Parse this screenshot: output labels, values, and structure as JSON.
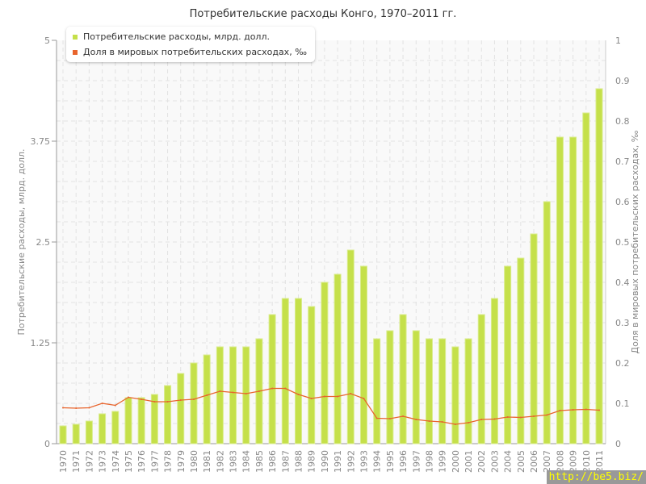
{
  "chart_data": {
    "type": "bar+line",
    "title": "Потребительские расходы Конго, 1970–2011 гг.",
    "ylabel": "Потребительские расходы, млрд. долл.",
    "y2label": "Доля в мировых потребительских расходах, ‰",
    "ylim": [
      0,
      5
    ],
    "y2lim": [
      0,
      1
    ],
    "yticks": [
      "0",
      "1.25",
      "2.5",
      "3.75",
      "5"
    ],
    "y2ticks": [
      "0",
      "0.1",
      "0.2",
      "0.3",
      "0.4",
      "0.5",
      "0.6",
      "0.7",
      "0.8",
      "0.9",
      "1"
    ],
    "grid": true,
    "legend": "top-left",
    "categories": [
      "1970",
      "1971",
      "1972",
      "1973",
      "1974",
      "1975",
      "1976",
      "1977",
      "1978",
      "1979",
      "1980",
      "1981",
      "1982",
      "1983",
      "1984",
      "1985",
      "1986",
      "1987",
      "1988",
      "1989",
      "1990",
      "1991",
      "1992",
      "1993",
      "1994",
      "1995",
      "1996",
      "1997",
      "1998",
      "1999",
      "2000",
      "2001",
      "2002",
      "2003",
      "2004",
      "2005",
      "2006",
      "2007",
      "2008",
      "2009",
      "2010",
      "2011"
    ],
    "series": [
      {
        "name": "Потребительские расходы, млрд. долл.",
        "type": "bar",
        "axis": "left",
        "color": "#c5e04a",
        "values": [
          0.22,
          0.24,
          0.28,
          0.37,
          0.4,
          0.57,
          0.57,
          0.61,
          0.72,
          0.87,
          1.0,
          1.1,
          1.2,
          1.2,
          1.2,
          1.3,
          1.6,
          1.8,
          1.8,
          1.7,
          2.0,
          2.1,
          2.4,
          2.2,
          1.3,
          1.4,
          1.6,
          1.4,
          1.3,
          1.3,
          1.2,
          1.3,
          1.6,
          1.8,
          2.2,
          2.3,
          2.6,
          3.0,
          3.8,
          3.8,
          4.1,
          4.4
        ]
      },
      {
        "name": "Доля в мировых потребительских расходах, ‰",
        "type": "line",
        "axis": "right",
        "color": "#e8642c",
        "values": [
          0.089,
          0.088,
          0.089,
          0.1,
          0.095,
          0.115,
          0.11,
          0.104,
          0.104,
          0.108,
          0.11,
          0.12,
          0.13,
          0.127,
          0.124,
          0.13,
          0.137,
          0.137,
          0.122,
          0.112,
          0.117,
          0.117,
          0.124,
          0.112,
          0.063,
          0.062,
          0.068,
          0.06,
          0.056,
          0.054,
          0.048,
          0.052,
          0.06,
          0.061,
          0.066,
          0.065,
          0.068,
          0.071,
          0.082,
          0.084,
          0.085,
          0.083
        ]
      }
    ]
  },
  "watermark": "http://be5.biz/"
}
